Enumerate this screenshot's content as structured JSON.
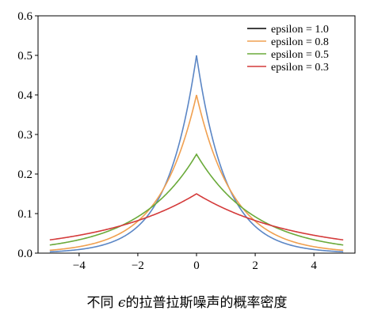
{
  "caption": {
    "prefix": "不同",
    "symbol": "ϵ",
    "suffix": "的拉普拉斯噪声的概率密度"
  },
  "chart_data": {
    "type": "line",
    "title": "",
    "xlabel": "",
    "ylabel": "",
    "xlim": [
      -5.4,
      5.4
    ],
    "ylim": [
      0.0,
      0.6
    ],
    "xticks": [
      -4,
      -2,
      0,
      2,
      4
    ],
    "xtick_labels": [
      "−4",
      "−2",
      "0",
      "2",
      "4"
    ],
    "yticks": [
      0.0,
      0.1,
      0.2,
      0.3,
      0.4,
      0.5,
      0.6
    ],
    "ytick_labels": [
      "0.0",
      "0.1",
      "0.2",
      "0.3",
      "0.4",
      "0.5",
      "0.6"
    ],
    "grid": false,
    "legend_position": "top-right",
    "x_domain": [
      -5,
      5
    ],
    "legend": [
      {
        "label": "epsilon = 1.0",
        "color": "#000000"
      },
      {
        "label": "epsilon = 0.8",
        "color": "#f0a050"
      },
      {
        "label": "epsilon = 0.5",
        "color": "#6aaa3a"
      },
      {
        "label": "epsilon = 0.3",
        "color": "#d43a3a"
      }
    ],
    "series": [
      {
        "epsilon": 1.0,
        "color": "#5b86c5",
        "peak": 0.5
      },
      {
        "epsilon": 0.8,
        "color": "#f0a050",
        "peak": 0.4
      },
      {
        "epsilon": 0.5,
        "color": "#6aaa3a",
        "peak": 0.25
      },
      {
        "epsilon": 0.3,
        "color": "#d43a3a",
        "peak": 0.15
      }
    ]
  }
}
